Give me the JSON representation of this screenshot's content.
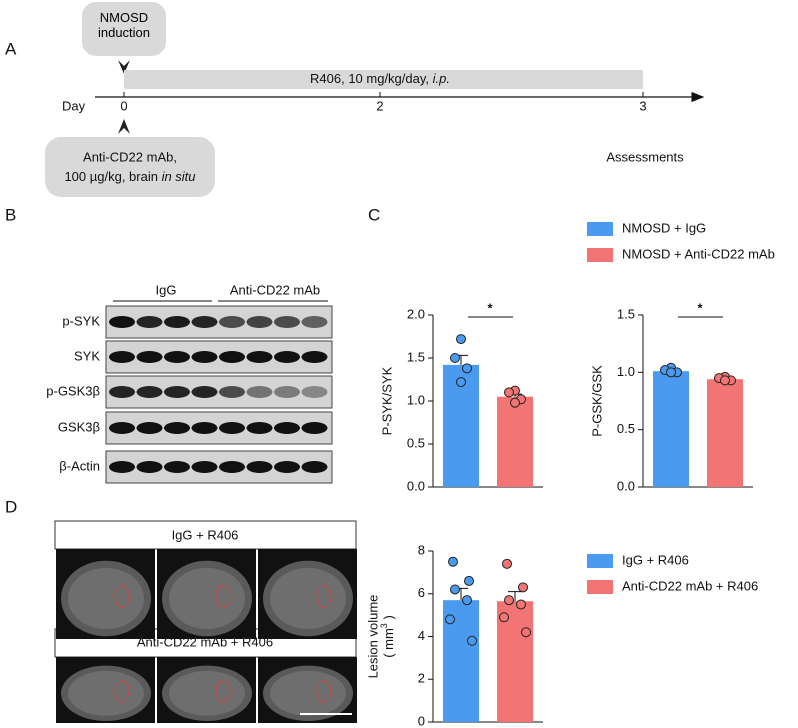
{
  "panels": {
    "a": "A",
    "b": "B",
    "c": "C",
    "d": "D"
  },
  "timeline": {
    "induction": "NMOSD induction",
    "treatment": "R406, 10 mg/kg/day, ",
    "treatment_route": "i.p.",
    "axis_label": "Day",
    "ticks": [
      "0",
      "2",
      "3"
    ],
    "injection_line1": "Anti-CD22 mAb,",
    "injection_line2": "100 µg/kg, brain ",
    "injection_site": "in situ",
    "assessment": "Assessments"
  },
  "blot": {
    "groups": [
      "IgG",
      "Anti-CD22 mAb"
    ],
    "rows": [
      "p-SYK",
      "SYK",
      "p-GSK3β",
      "GSK3β",
      "β-Actin"
    ]
  },
  "mri": {
    "groups": [
      "IgG + R406",
      "Anti-CD22 mAb + R406"
    ]
  },
  "chart_data": [
    {
      "type": "bar",
      "ylabel": "P-SYK/SYK",
      "ylim": [
        0,
        2
      ],
      "yticks": [
        {
          "value": 0,
          "label": "0.0"
        },
        {
          "value": 0.5,
          "label": "0.5"
        },
        {
          "value": 1,
          "label": "1.0"
        },
        {
          "value": 1.5,
          "label": "1.5"
        },
        {
          "value": 2,
          "label": "2.0"
        }
      ],
      "annotation": "*",
      "series": [
        {
          "name": "NMOSD + IgG",
          "color": "#4a9af0",
          "value": 1.42,
          "error": 0.11,
          "points": [
            1.72,
            1.5,
            1.38,
            1.22
          ]
        },
        {
          "name": "NMOSD + Anti-CD22 mAb",
          "color": "#f27474",
          "value": 1.05,
          "error": 0.03,
          "points": [
            1.12,
            1.1,
            1.02,
            0.98
          ]
        }
      ]
    },
    {
      "type": "bar",
      "ylabel": "P-GSK/GSK",
      "ylim": [
        0,
        1.5
      ],
      "yticks": [
        {
          "value": 0,
          "label": "0.0"
        },
        {
          "value": 0.5,
          "label": "0.5"
        },
        {
          "value": 1,
          "label": "1.0"
        },
        {
          "value": 1.5,
          "label": "1.5"
        }
      ],
      "annotation": "*",
      "series": [
        {
          "color": "#4a9af0",
          "value": 1.01,
          "error": 0.02,
          "points": [
            1.04,
            1.02,
            1.0,
            1.0
          ]
        },
        {
          "color": "#f27474",
          "value": 0.94,
          "error": 0.01,
          "points": [
            0.96,
            0.95,
            0.93,
            0.93
          ]
        }
      ]
    },
    {
      "type": "bar",
      "ylabel": "Lesion volume",
      "ylabel_unit": {
        "prefix": "( mm",
        "sup": "3",
        "suffix": " )"
      },
      "ylim": [
        0,
        8
      ],
      "yticks": [
        0,
        2,
        4,
        6,
        8
      ],
      "series": [
        {
          "name": "IgG + R406",
          "color": "#4a9af0",
          "value": 5.7,
          "error": 0.55,
          "points": [
            7.5,
            6.6,
            6.2,
            5.7,
            4.8,
            3.8
          ]
        },
        {
          "name": "Anti-CD22 mAb + R406",
          "color": "#f27474",
          "value": 5.65,
          "error": 0.45,
          "points": [
            7.4,
            6.3,
            5.7,
            5.5,
            4.9,
            4.2
          ]
        }
      ]
    }
  ]
}
